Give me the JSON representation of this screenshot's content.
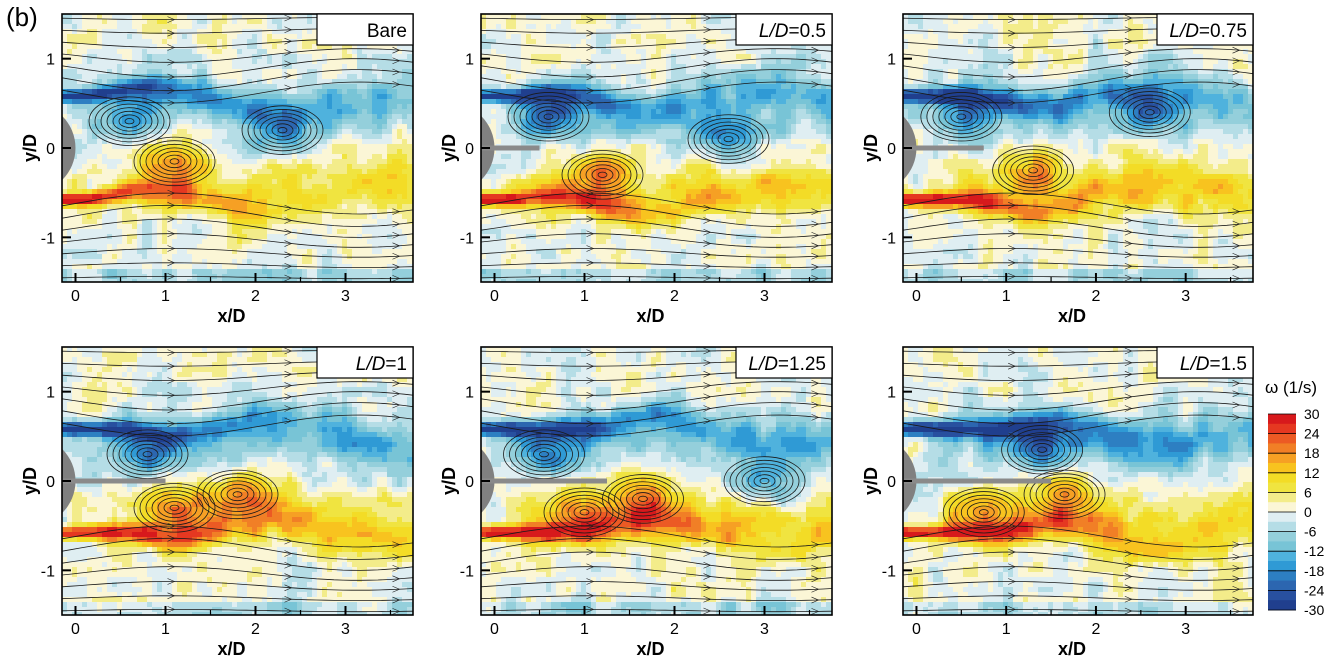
{
  "figure_label": "(b)",
  "chart_data": [
    {
      "type": "heatmap",
      "title": "Bare",
      "xlabel": "x/D",
      "ylabel": "y/D",
      "xlim": [
        -0.15,
        3.75
      ],
      "ylim": [
        -1.5,
        1.5
      ],
      "xticks": [
        "0",
        "1",
        "2",
        "3"
      ],
      "xtick_values": [
        0,
        1,
        2,
        3
      ],
      "yticks": [
        "1",
        "0",
        "-1"
      ],
      "ytick_values": [
        1,
        0,
        -1
      ],
      "plate_length": 0,
      "vortices": [
        {
          "x": 0.6,
          "y": 0.3,
          "sign": -1
        },
        {
          "x": 1.1,
          "y": -0.15,
          "sign": 1
        },
        {
          "x": 2.3,
          "y": 0.2,
          "sign": -1
        }
      ]
    },
    {
      "type": "heatmap",
      "title": "L/D=0.5",
      "title_italic": "L/D",
      "title_value": "=0.5",
      "xlabel": "x/D",
      "ylabel": "y/D",
      "xlim": [
        -0.15,
        3.75
      ],
      "ylim": [
        -1.5,
        1.5
      ],
      "xticks": [
        "0",
        "1",
        "2",
        "3"
      ],
      "xtick_values": [
        0,
        1,
        2,
        3
      ],
      "yticks": [
        "1",
        "0",
        "-1"
      ],
      "ytick_values": [
        1,
        0,
        -1
      ],
      "plate_length": 0.5,
      "vortices": [
        {
          "x": 0.6,
          "y": 0.35,
          "sign": -1
        },
        {
          "x": 1.2,
          "y": -0.3,
          "sign": 1
        },
        {
          "x": 2.6,
          "y": 0.1,
          "sign": -1
        }
      ]
    },
    {
      "type": "heatmap",
      "title": "L/D=0.75",
      "title_italic": "L/D",
      "title_value": "=0.75",
      "xlabel": "x/D",
      "ylabel": "y/D",
      "xlim": [
        -0.15,
        3.75
      ],
      "ylim": [
        -1.5,
        1.5
      ],
      "xticks": [
        "0",
        "1",
        "2",
        "3"
      ],
      "xtick_values": [
        0,
        1,
        2,
        3
      ],
      "yticks": [
        "1",
        "0",
        "-1"
      ],
      "ytick_values": [
        1,
        0,
        -1
      ],
      "plate_length": 0.75,
      "vortices": [
        {
          "x": 0.5,
          "y": 0.35,
          "sign": -1
        },
        {
          "x": 1.3,
          "y": -0.25,
          "sign": 1
        },
        {
          "x": 2.6,
          "y": 0.4,
          "sign": -1
        }
      ]
    },
    {
      "type": "heatmap",
      "title": "L/D=1",
      "title_italic": "L/D",
      "title_value": "=1",
      "xlabel": "x/D",
      "ylabel": "y/D",
      "xlim": [
        -0.15,
        3.75
      ],
      "ylim": [
        -1.5,
        1.5
      ],
      "xticks": [
        "0",
        "1",
        "2",
        "3"
      ],
      "xtick_values": [
        0,
        1,
        2,
        3
      ],
      "yticks": [
        "1",
        "0",
        "-1"
      ],
      "ytick_values": [
        1,
        0,
        -1
      ],
      "plate_length": 1,
      "vortices": [
        {
          "x": 0.8,
          "y": 0.3,
          "sign": -1
        },
        {
          "x": 1.1,
          "y": -0.3,
          "sign": 1
        },
        {
          "x": 1.8,
          "y": -0.15,
          "sign": 1
        }
      ]
    },
    {
      "type": "heatmap",
      "title": "L/D=1.25",
      "title_italic": "L/D",
      "title_value": "=1.25",
      "xlabel": "x/D",
      "ylabel": "y/D",
      "xlim": [
        -0.15,
        3.75
      ],
      "ylim": [
        -1.5,
        1.5
      ],
      "xticks": [
        "0",
        "1",
        "2",
        "3"
      ],
      "xtick_values": [
        0,
        1,
        2,
        3
      ],
      "yticks": [
        "1",
        "0",
        "-1"
      ],
      "ytick_values": [
        1,
        0,
        -1
      ],
      "plate_length": 1.25,
      "vortices": [
        {
          "x": 0.55,
          "y": 0.3,
          "sign": -1
        },
        {
          "x": 1.0,
          "y": -0.35,
          "sign": 1
        },
        {
          "x": 1.65,
          "y": -0.2,
          "sign": 1
        },
        {
          "x": 3.0,
          "y": 0.0,
          "sign": -1
        }
      ]
    },
    {
      "type": "heatmap",
      "title": "L/D=1.5",
      "title_italic": "L/D",
      "title_value": "=1.5",
      "xlabel": "x/D",
      "ylabel": "y/D",
      "xlim": [
        -0.15,
        3.75
      ],
      "ylim": [
        -1.5,
        1.5
      ],
      "xticks": [
        "0",
        "1",
        "2",
        "3"
      ],
      "xtick_values": [
        0,
        1,
        2,
        3
      ],
      "yticks": [
        "1",
        "0",
        "-1"
      ],
      "ytick_values": [
        1,
        0,
        -1
      ],
      "plate_length": 1.5,
      "vortices": [
        {
          "x": 1.4,
          "y": 0.35,
          "sign": -1
        },
        {
          "x": 0.75,
          "y": -0.35,
          "sign": 1
        },
        {
          "x": 1.65,
          "y": -0.15,
          "sign": 1
        }
      ]
    }
  ],
  "colorbar": {
    "title": "ω (1/s)",
    "range": [
      -30,
      30
    ],
    "ticks": [
      "30",
      "24",
      "18",
      "12",
      "6",
      "0",
      "-6",
      "-12",
      "-18",
      "-24",
      "-30"
    ],
    "tick_values": [
      30,
      24,
      18,
      12,
      6,
      0,
      -6,
      -12,
      -18,
      -24,
      -30
    ],
    "colors": [
      "#d7191c",
      "#e53821",
      "#ec5a24",
      "#f17f26",
      "#f6a024",
      "#f8c31f",
      "#f3dc26",
      "#f0e440",
      "#f3ec8a",
      "#fbf6d6",
      "#dfeef2",
      "#b5dde6",
      "#94cfdb",
      "#78c4d6",
      "#4fb2dd",
      "#2f9ad5",
      "#2d7fc2",
      "#2c66b0",
      "#28509f",
      "#203f8e"
    ]
  }
}
